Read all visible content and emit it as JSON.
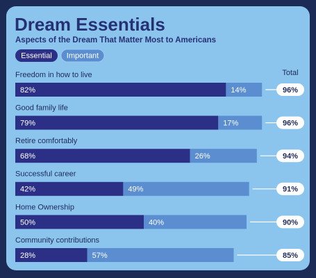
{
  "chart_data": {
    "type": "bar",
    "stacked": true,
    "orientation": "horizontal",
    "title": "Dream Essentials",
    "subtitle": "Aspects of the Dream That Matter Most to Americans",
    "total_title": "Total",
    "categories": [
      "Freedom in how to live",
      "Good family life",
      "Retire comfortably",
      "Successful career",
      "Home Ownership",
      "Community contributions"
    ],
    "series": [
      {
        "name": "Essential",
        "color": "#2b2f85",
        "values": [
          82,
          79,
          68,
          42,
          50,
          28
        ],
        "value_labels": [
          "82%",
          "79%",
          "68%",
          "42%",
          "50%",
          "28%"
        ]
      },
      {
        "name": "Important",
        "color": "#5a8ed0",
        "values": [
          14,
          17,
          26,
          49,
          40,
          57
        ],
        "value_labels": [
          "14%",
          "17%",
          "26%",
          "49%",
          "40%",
          "57%"
        ]
      }
    ],
    "totals": [
      96,
      96,
      94,
      91,
      90,
      85
    ],
    "totals_labels": [
      "96%",
      "96%",
      "94%",
      "91%",
      "90%",
      "85%"
    ]
  }
}
